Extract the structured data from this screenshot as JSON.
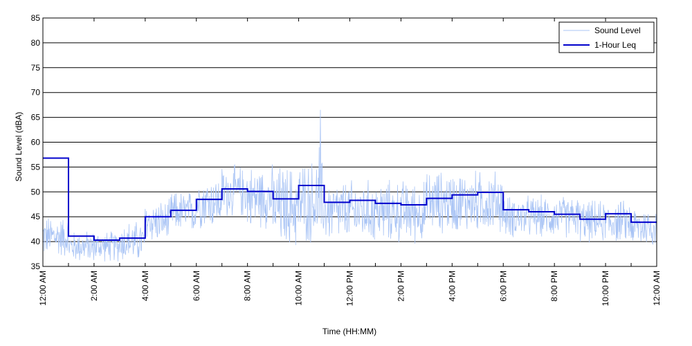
{
  "chart_data": {
    "type": "line",
    "xlabel": "Time (HH:MM)",
    "ylabel": "Sound Level (dBA)",
    "ylim": [
      35,
      85
    ],
    "yticks": [
      35,
      40,
      45,
      50,
      55,
      60,
      65,
      70,
      75,
      80,
      85
    ],
    "xlim_hours": [
      0,
      24
    ],
    "xticks": [
      {
        "hour": 0,
        "label": "12:00 AM"
      },
      {
        "hour": 2,
        "label": "2:00 AM"
      },
      {
        "hour": 4,
        "label": "4:00 AM"
      },
      {
        "hour": 6,
        "label": "6:00 AM"
      },
      {
        "hour": 8,
        "label": "8:00 AM"
      },
      {
        "hour": 10,
        "label": "10:00 AM"
      },
      {
        "hour": 12,
        "label": "12:00 PM"
      },
      {
        "hour": 14,
        "label": "2:00 PM"
      },
      {
        "hour": 16,
        "label": "4:00 PM"
      },
      {
        "hour": 18,
        "label": "6:00 PM"
      },
      {
        "hour": 20,
        "label": "8:00 PM"
      },
      {
        "hour": 22,
        "label": "10:00 PM"
      },
      {
        "hour": 24,
        "label": "12:00 AM"
      }
    ],
    "grid": "horizontal",
    "legend_position": "top-right",
    "series": [
      {
        "name": "Sound Level",
        "color": "#a9c4f5",
        "style": "noisy-line",
        "approx_hourly_center": [
          41,
          39,
          39,
          40,
          44,
          46,
          48,
          50,
          49,
          47,
          48,
          46,
          46,
          46,
          46,
          48,
          48,
          48,
          45,
          45,
          45,
          44,
          44,
          43
        ],
        "approx_hourly_spread": [
          4,
          3,
          3,
          4,
          4,
          4,
          5,
          5,
          6,
          8,
          8,
          6,
          6,
          6,
          6,
          6,
          6,
          6,
          4,
          4,
          4,
          4,
          4,
          4
        ],
        "peaks": [
          {
            "hour": 10.85,
            "value": 66.5
          },
          {
            "hour": 10.8,
            "value": 59
          }
        ]
      },
      {
        "name": "1-Hour Leq",
        "color": "#0000cc",
        "style": "step",
        "hours": [
          0,
          1,
          2,
          3,
          4,
          5,
          6,
          7,
          8,
          9,
          10,
          11,
          12,
          13,
          14,
          15,
          16,
          17,
          18,
          19,
          20,
          21,
          22,
          23
        ],
        "values": [
          56.8,
          41.1,
          40.3,
          40.7,
          45.0,
          46.3,
          48.5,
          50.6,
          50.1,
          48.6,
          51.3,
          47.9,
          48.3,
          47.7,
          47.4,
          48.7,
          49.4,
          49.9,
          46.4,
          46.0,
          45.5,
          44.5,
          45.6,
          43.9
        ]
      }
    ]
  },
  "legend": {
    "items": [
      {
        "label": "Sound Level",
        "color": "#a9c4f5"
      },
      {
        "label": "1-Hour Leq",
        "color": "#0000cc"
      }
    ]
  }
}
